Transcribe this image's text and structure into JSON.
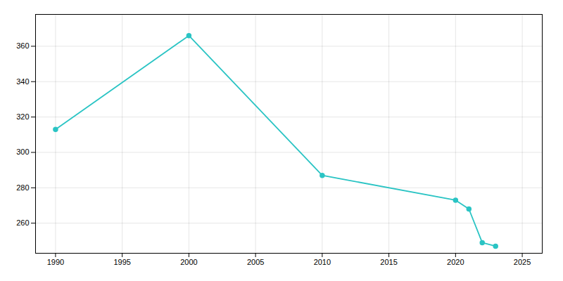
{
  "chart_data": {
    "type": "line",
    "x": [
      1990,
      2000,
      2010,
      2020,
      2021,
      2022,
      2023
    ],
    "values": [
      313,
      366,
      287,
      273,
      268,
      249,
      247
    ],
    "color": "#2ac4c4",
    "marker": "circle",
    "xlim": [
      1988.5,
      2026.5
    ],
    "ylim": [
      243,
      378
    ],
    "xticks": [
      1990,
      1995,
      2000,
      2005,
      2010,
      2015,
      2020,
      2025
    ],
    "yticks": [
      260,
      280,
      300,
      320,
      340,
      360
    ],
    "grid": true
  }
}
